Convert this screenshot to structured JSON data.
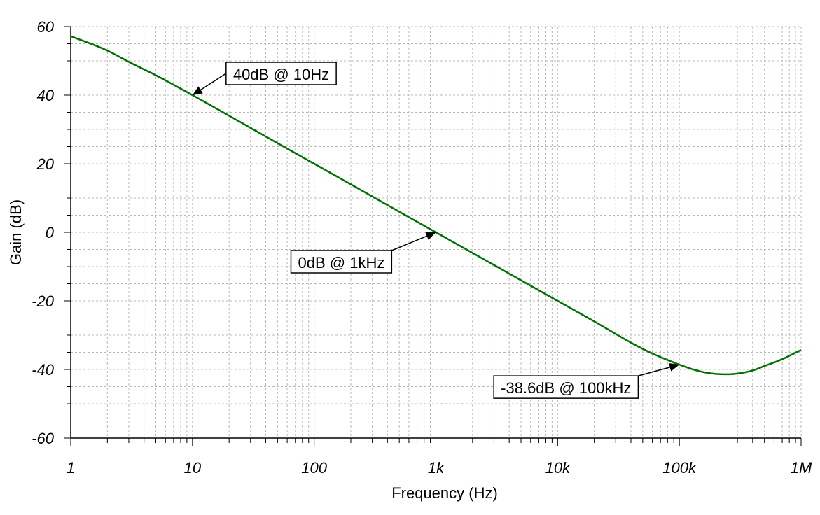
{
  "chart_data": {
    "type": "line",
    "xlabel": "Frequency (Hz)",
    "ylabel": "Gain (dB)",
    "x_scale": "log",
    "xlim": [
      1,
      1000000
    ],
    "ylim": [
      -60,
      60
    ],
    "grid": true,
    "x_ticks": [
      {
        "value": 1,
        "label": "1"
      },
      {
        "value": 10,
        "label": "10"
      },
      {
        "value": 100,
        "label": "100"
      },
      {
        "value": 1000,
        "label": "1k"
      },
      {
        "value": 10000,
        "label": "10k"
      },
      {
        "value": 100000,
        "label": "100k"
      },
      {
        "value": 1000000,
        "label": "1M"
      }
    ],
    "y_ticks": [
      {
        "value": 60,
        "label": "60"
      },
      {
        "value": 40,
        "label": "40"
      },
      {
        "value": 20,
        "label": "20"
      },
      {
        "value": 0,
        "label": "0"
      },
      {
        "value": -20,
        "label": "-20"
      },
      {
        "value": -40,
        "label": "-40"
      },
      {
        "value": -60,
        "label": "-60"
      }
    ],
    "series": [
      {
        "color": "#007000",
        "x": [
          1,
          2,
          3,
          5,
          10,
          20,
          50,
          100,
          200,
          500,
          1000,
          2000,
          5000,
          10000,
          20000,
          50000,
          100000,
          150000,
          200000,
          250000,
          300000,
          400000,
          500000,
          700000,
          1000000
        ],
        "y": [
          57.2,
          53,
          49.7,
          45.8,
          40,
          34,
          26,
          20,
          14,
          6,
          0,
          -6,
          -14,
          -20,
          -26,
          -34,
          -38.6,
          -40.6,
          -41.3,
          -41.4,
          -41.2,
          -40.3,
          -39,
          -37,
          -34.3
        ]
      }
    ],
    "annotations": [
      {
        "text": "40dB @ 10Hz",
        "x": 10,
        "y": 40
      },
      {
        "text": "0dB @ 1kHz",
        "x": 1000,
        "y": 0
      },
      {
        "text": "-38.6dB @ 100kHz",
        "x": 100000,
        "y": -38.6
      }
    ]
  }
}
